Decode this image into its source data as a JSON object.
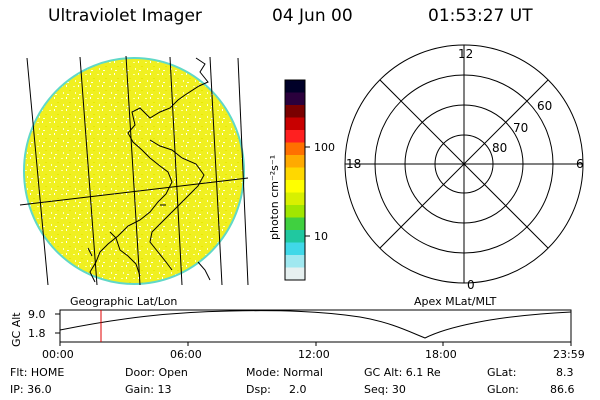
{
  "header": {
    "title": "Ultraviolet Imager",
    "date": "04 Jun 00",
    "time": "01:53:27 UT"
  },
  "colorbar": {
    "unit_label": "photon cm⁻²s⁻¹",
    "ticks": [
      "100",
      "10"
    ],
    "colors": [
      "#000028",
      "#2a003c",
      "#7a0000",
      "#c80000",
      "#ff2020",
      "#ff7000",
      "#ffaa00",
      "#ffd800",
      "#ffff00",
      "#d8f000",
      "#a0e600",
      "#40d040",
      "#20c8a0",
      "#40d8e8",
      "#a0e8f0",
      "#e6f0f0"
    ]
  },
  "image_panel": {
    "label": "Geographic Lat/Lon",
    "fill_color": "#f0f020",
    "edge_color": "#60d8c8"
  },
  "polar_panel": {
    "label": "Apex MLat/MLT",
    "mlt_labels": [
      "12",
      "18",
      "6",
      "0"
    ],
    "lat_labels": [
      "60",
      "70",
      "80"
    ]
  },
  "altitude_plot": {
    "ylabel": "GC Alt",
    "y_ticks": [
      "9.0",
      "1.8"
    ],
    "x_ticks": [
      "00:00",
      "06:00",
      "12:00",
      "18:00",
      "23:59"
    ],
    "marker_color": "#e00000"
  },
  "info": {
    "flt": "Flt: HOME",
    "ip": "IP: 36.0",
    "door": "Door: Open",
    "gain": "Gain: 13",
    "mode": "Mode: Normal",
    "dsp_label": "Dsp:",
    "dsp_value": "2.0",
    "gc_alt": "GC Alt: 6.1 Re",
    "seq": "Seq: 30",
    "glat_label": "GLat:",
    "glat_value": "8.3",
    "glon_label": "GLon:",
    "glon_value": "86.6"
  }
}
